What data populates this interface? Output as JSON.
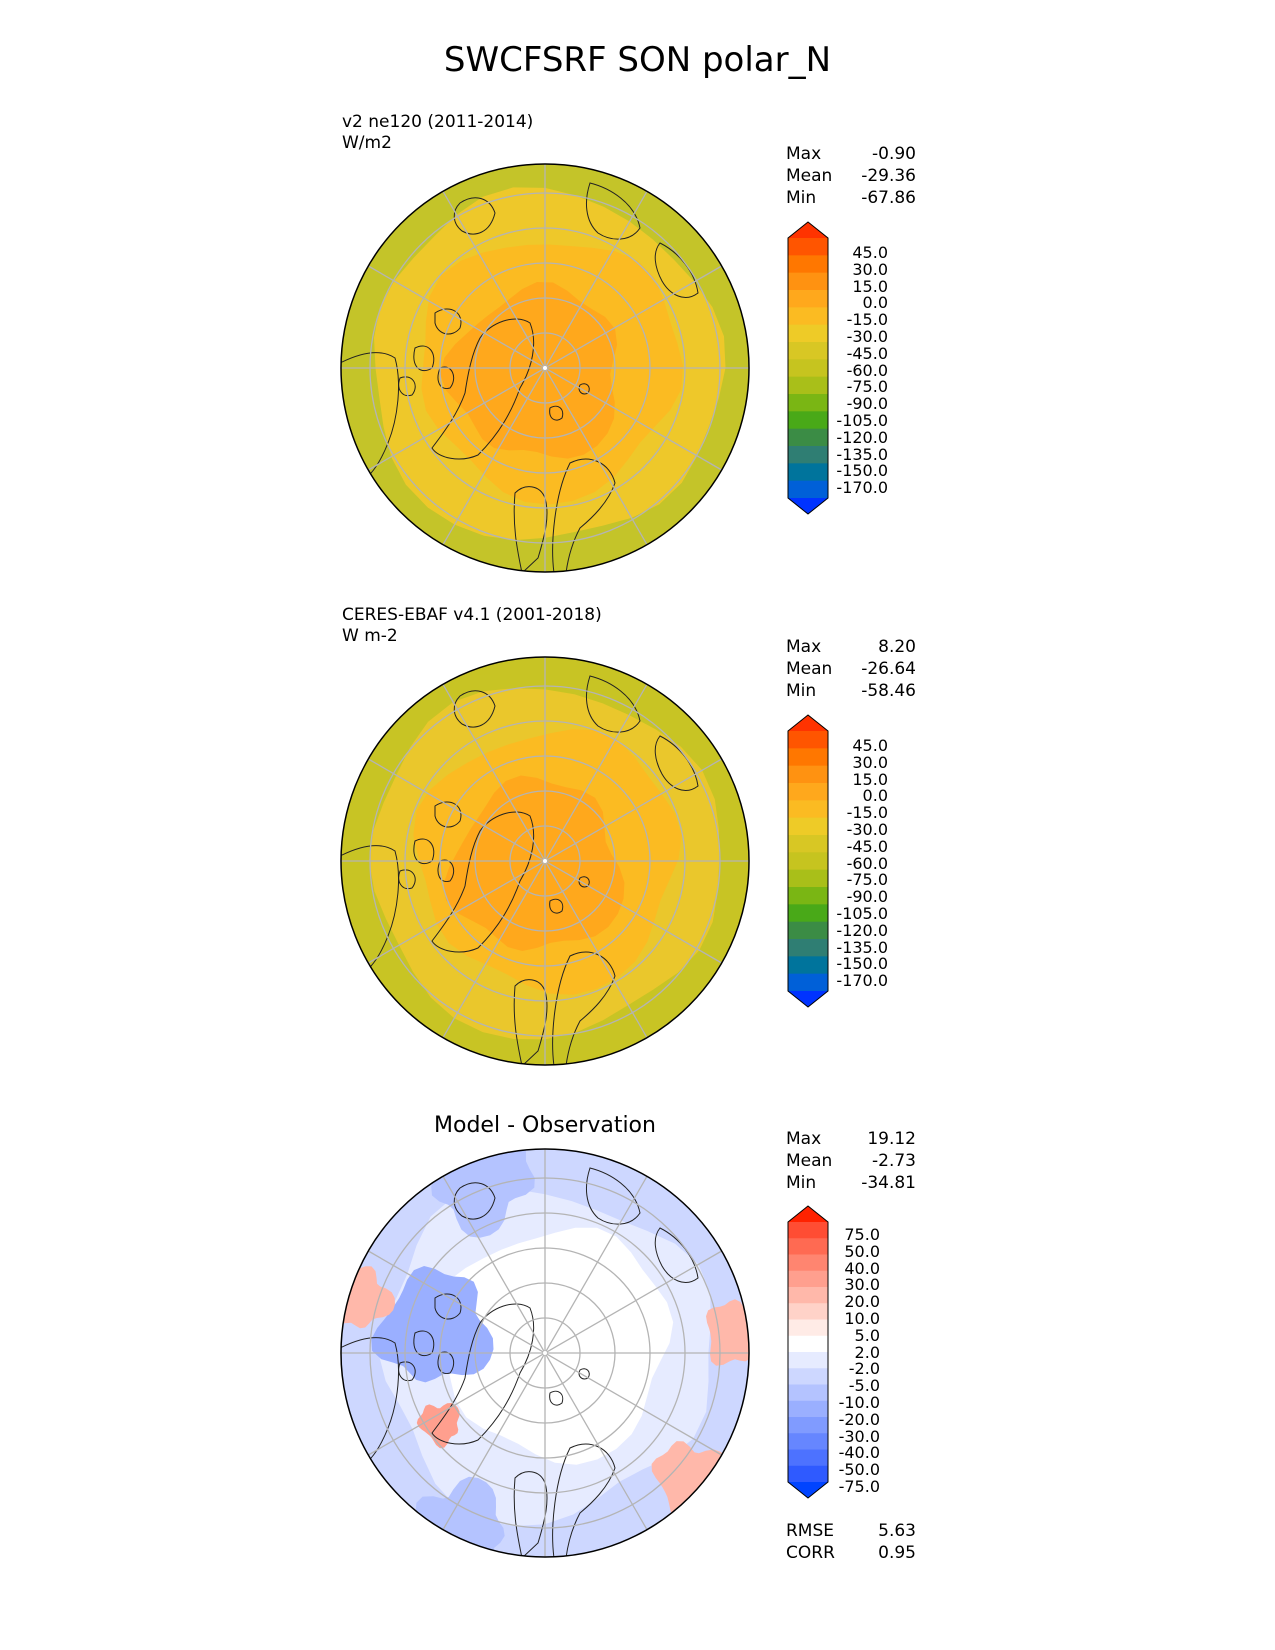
{
  "title": "SWCFSRF SON polar_N",
  "panels": [
    {
      "label_line1": "v2 ne120 (2011-2014)",
      "label_line2": "W/m2",
      "stats": {
        "max_label": "Max",
        "max": "-0.90",
        "mean_label": "Mean",
        "mean": "-29.36",
        "min_label": "Min",
        "min": "-67.86"
      },
      "colorbar_ticks": [
        "45.0",
        "30.0",
        "15.0",
        "0.0",
        "-15.0",
        "-30.0",
        "-45.0",
        "-60.0",
        "-75.0",
        "-90.0",
        "-105.0",
        "-120.0",
        "-135.0",
        "-150.0",
        "-170.0"
      ]
    },
    {
      "label_line1": "CERES-EBAF v4.1 (2001-2018)",
      "label_line2": "W m-2",
      "stats": {
        "max_label": "Max",
        "max": "8.20",
        "mean_label": "Mean",
        "mean": "-26.64",
        "min_label": "Min",
        "min": "-58.46"
      },
      "colorbar_ticks": [
        "45.0",
        "30.0",
        "15.0",
        "0.0",
        "-15.0",
        "-30.0",
        "-45.0",
        "-60.0",
        "-75.0",
        "-90.0",
        "-105.0",
        "-120.0",
        "-135.0",
        "-150.0",
        "-170.0"
      ]
    },
    {
      "heading": "Model - Observation",
      "stats": {
        "max_label": "Max",
        "max": "19.12",
        "mean_label": "Mean",
        "mean": "-2.73",
        "min_label": "Min",
        "min": "-34.81"
      },
      "colorbar_ticks": [
        "75.0",
        "50.0",
        "40.0",
        "30.0",
        "20.0",
        "10.0",
        "5.0",
        "2.0",
        "-2.0",
        "-5.0",
        "-10.0",
        "-20.0",
        "-30.0",
        "-40.0",
        "-50.0",
        "-75.0"
      ],
      "metrics": {
        "rmse_label": "RMSE",
        "rmse": "5.63",
        "corr_label": "CORR",
        "corr": "0.95"
      }
    }
  ],
  "colors": {
    "field_cbar": [
      "#ff3300",
      "#ff5500",
      "#ff7700",
      "#ff9211",
      "#ffa81c",
      "#fbbb22",
      "#eecb27",
      "#d8c724",
      "#c6c41f",
      "#a9bf19",
      "#7ab614",
      "#49a918",
      "#3b8c45",
      "#2f7e73",
      "#00749c",
      "#0060d8",
      "#0033ff"
    ],
    "diff_cbar": [
      "#ff2200",
      "#ff4d33",
      "#ff6a52",
      "#ff8570",
      "#ff9f8e",
      "#ffb8aa",
      "#ffd2c8",
      "#ffebe6",
      "#ffffff",
      "#e6ebff",
      "#cdd7ff",
      "#b4c3ff",
      "#9aafff",
      "#809bff",
      "#6686ff",
      "#4d72ff",
      "#2f5aff",
      "#0044ff"
    ],
    "panel1": {
      "outer": "#c4c429",
      "mid": "#eec82a",
      "inner": "#fbbb22",
      "core": "#ffa81c"
    },
    "panel2": {
      "outer": "#c8c424",
      "mid": "#eac72c",
      "inner": "#fbbb22",
      "core": "#ffa81c"
    },
    "land_outline": "#222222",
    "grid": "#b4b4b4"
  }
}
